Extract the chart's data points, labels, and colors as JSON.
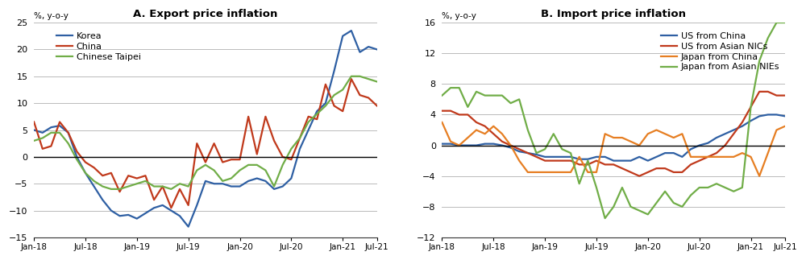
{
  "title_a": "A. Export price inflation",
  "title_b": "B. Import price inflation",
  "ytext": "%, y-o-y",
  "xlabels": [
    "Jan-18",
    "Jul-18",
    "Jan-19",
    "Jul-19",
    "Jan-20",
    "Jul-20",
    "Jan-21",
    "Jul-21"
  ],
  "korea": [
    5.0,
    4.5,
    5.5,
    5.8,
    4.5,
    0.0,
    -3.0,
    -5.5,
    -8.0,
    -10.0,
    -11.0,
    -10.8,
    -11.5,
    -10.5,
    -9.5,
    -9.0,
    -10.0,
    -11.0,
    -13.0,
    -9.0,
    -4.5,
    -5.0,
    -5.0,
    -5.5,
    -5.5,
    -4.5,
    -4.0,
    -4.5,
    -6.0,
    -5.5,
    -4.0,
    1.5,
    5.0,
    8.5,
    10.0,
    16.0,
    22.5,
    23.5,
    19.5,
    20.5,
    20.0
  ],
  "china_a": [
    6.5,
    1.5,
    2.0,
    6.5,
    4.5,
    1.0,
    -1.0,
    -2.0,
    -3.5,
    -3.0,
    -6.5,
    -3.5,
    -4.0,
    -3.5,
    -8.0,
    -5.5,
    -9.5,
    -6.0,
    -9.0,
    2.5,
    -1.0,
    2.5,
    -1.0,
    -0.5,
    -0.5,
    7.5,
    0.5,
    7.5,
    3.0,
    0.0,
    -0.5,
    3.5,
    7.5,
    7.0,
    13.5,
    9.5,
    8.5,
    14.5,
    11.5,
    11.0,
    9.5
  ],
  "chinese_taipei": [
    3.0,
    3.5,
    4.5,
    4.5,
    2.5,
    -0.5,
    -3.0,
    -4.5,
    -5.5,
    -6.0,
    -6.0,
    -5.5,
    -5.0,
    -4.5,
    -5.5,
    -5.5,
    -6.0,
    -5.0,
    -5.5,
    -2.5,
    -1.5,
    -2.5,
    -4.5,
    -4.0,
    -2.5,
    -1.5,
    -1.5,
    -2.5,
    -5.5,
    -1.5,
    1.5,
    3.5,
    6.5,
    8.0,
    9.5,
    11.5,
    12.5,
    15.0,
    15.0,
    14.5,
    14.0
  ],
  "us_china": [
    0.2,
    0.2,
    0.0,
    0.0,
    0.0,
    0.2,
    0.2,
    0.0,
    -0.3,
    -0.8,
    -1.0,
    -1.2,
    -1.5,
    -1.5,
    -1.5,
    -1.5,
    -1.8,
    -1.8,
    -1.5,
    -1.5,
    -2.0,
    -2.0,
    -2.0,
    -1.5,
    -2.0,
    -1.5,
    -1.0,
    -1.0,
    -1.5,
    -0.5,
    0.0,
    0.3,
    1.0,
    1.5,
    2.0,
    2.5,
    3.2,
    3.8,
    4.0,
    4.0,
    3.8
  ],
  "us_asian_nics": [
    4.5,
    4.5,
    4.0,
    4.0,
    3.0,
    2.5,
    1.5,
    0.5,
    0.0,
    -0.5,
    -1.0,
    -1.5,
    -2.0,
    -2.0,
    -2.0,
    -2.0,
    -2.5,
    -2.5,
    -2.0,
    -2.5,
    -2.5,
    -3.0,
    -3.5,
    -4.0,
    -3.5,
    -3.0,
    -3.0,
    -3.5,
    -3.5,
    -2.5,
    -2.0,
    -1.5,
    -1.0,
    0.0,
    1.5,
    3.0,
    5.0,
    7.0,
    7.0,
    6.5,
    6.5
  ],
  "japan_china": [
    3.0,
    0.5,
    0.0,
    1.0,
    2.0,
    1.5,
    2.5,
    1.5,
    0.0,
    -2.0,
    -3.5,
    -3.5,
    -3.5,
    -3.5,
    -3.5,
    -3.5,
    -1.5,
    -3.5,
    -3.5,
    1.5,
    1.0,
    1.0,
    0.5,
    0.0,
    1.5,
    2.0,
    1.5,
    1.0,
    1.5,
    -1.5,
    -1.5,
    -1.5,
    -1.5,
    -1.5,
    -1.5,
    -1.0,
    -1.5,
    -4.0,
    -1.0,
    2.0,
    2.5
  ],
  "japan_asian_nies": [
    6.5,
    7.5,
    7.5,
    5.0,
    7.0,
    6.5,
    6.5,
    6.5,
    5.5,
    6.0,
    2.0,
    -1.0,
    -0.5,
    1.5,
    -0.5,
    -1.0,
    -5.0,
    -2.0,
    -5.5,
    -9.5,
    -8.0,
    -5.5,
    -8.0,
    -8.5,
    -9.0,
    -7.5,
    -6.0,
    -7.5,
    -8.0,
    -6.5,
    -5.5,
    -5.5,
    -5.0,
    -5.5,
    -6.0,
    -5.5,
    5.0,
    11.0,
    14.0,
    16.0,
    16.0
  ],
  "color_korea": "#2e5fa3",
  "color_china_a": "#c0391b",
  "color_chinese_taipei": "#70ad47",
  "color_us_china": "#2e5fa3",
  "color_us_asian_nics": "#c0391b",
  "color_japan_china": "#e67e22",
  "color_japan_asian_nies": "#70ad47",
  "ylim_a": [
    -15,
    25
  ],
  "yticks_a": [
    -15,
    -10,
    -5,
    0,
    5,
    10,
    15,
    20,
    25
  ],
  "ylim_b": [
    -12,
    16
  ],
  "yticks_b": [
    -12,
    -8,
    -4,
    0,
    4,
    8,
    12,
    16
  ]
}
